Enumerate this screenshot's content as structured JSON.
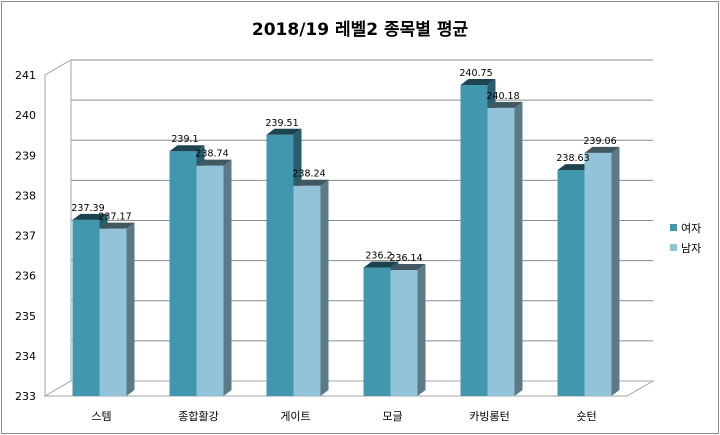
{
  "chart_data": {
    "type": "bar",
    "title": "2018/19 레벨2 종목별 평균",
    "xlabel": "",
    "ylabel": "",
    "categories": [
      "스템",
      "종합활강",
      "게이트",
      "모글",
      "카빙롱턴",
      "숏턴"
    ],
    "series": [
      {
        "name": "여자",
        "values": [
          237.39,
          239.1,
          239.51,
          236.2,
          240.75,
          238.63
        ],
        "labels": [
          "237.39",
          "239.1",
          "239.51",
          "236.2",
          "240.75",
          "238.63"
        ],
        "color": "#4197ae"
      },
      {
        "name": "남자",
        "values": [
          237.17,
          238.74,
          238.24,
          236.14,
          240.18,
          239.06
        ],
        "labels": [
          "237.17",
          "238.74",
          "238.24",
          "236.14",
          "240.18",
          "239.06"
        ],
        "color": "#92c3d8"
      }
    ],
    "ylim": [
      233,
      241
    ],
    "yticks": [
      "233",
      "234",
      "235",
      "236",
      "237",
      "238",
      "239",
      "240",
      "241"
    ],
    "grid": true,
    "legend_position": "right",
    "style": "3d-clustered-column"
  }
}
